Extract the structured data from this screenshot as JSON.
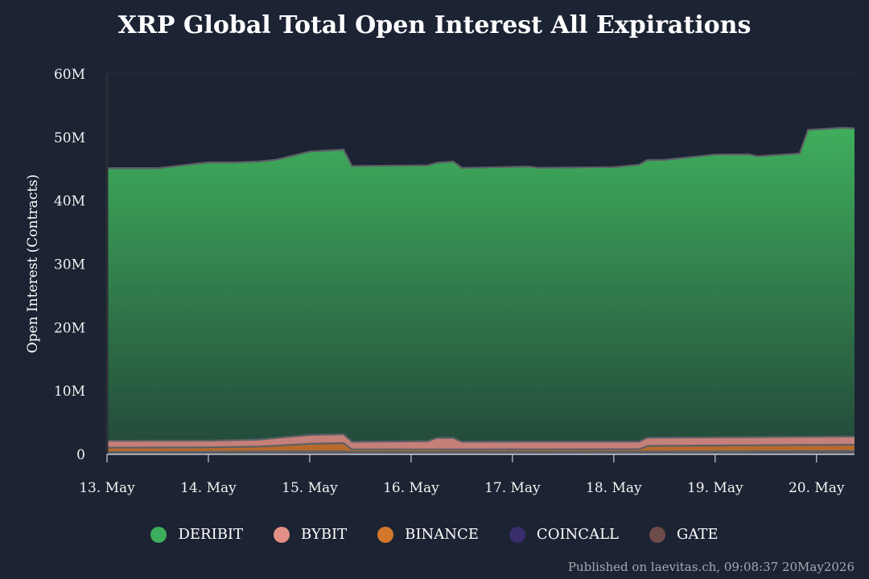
{
  "chart_data": {
    "type": "area",
    "title": "XRP Global Total Open Interest All Expirations",
    "ylabel": "Open Interest (Contracts)",
    "xlabel": "",
    "ylim": [
      0,
      60000000
    ],
    "yticks": [
      0,
      10000000,
      20000000,
      30000000,
      40000000,
      50000000,
      60000000
    ],
    "ytick_labels": [
      "0",
      "10M",
      "20M",
      "30M",
      "40M",
      "50M",
      "60M"
    ],
    "x_start": "2026-05-13 00:00",
    "x_end": "2026-05-20 09:00",
    "xticks": [
      "2026-05-13",
      "2026-05-14",
      "2026-05-15",
      "2026-05-16",
      "2026-05-17",
      "2026-05-18",
      "2026-05-19",
      "2026-05-20"
    ],
    "xtick_labels": [
      "13. May",
      "14. May",
      "15. May",
      "16. May",
      "17. May",
      "18. May",
      "19. May",
      "20. May"
    ],
    "stacked": true,
    "legend_position": "bottom-center",
    "grid": false,
    "series": [
      {
        "name": "GATE",
        "color": "#6e4c4a",
        "points": [
          [
            "2026-05-13 00:00",
            200000
          ],
          [
            "2026-05-15 08:00",
            300000
          ],
          [
            "2026-05-15 10:00",
            200000
          ],
          [
            "2026-05-20 09:00",
            220000
          ]
        ]
      },
      {
        "name": "COINCALL",
        "color": "#3a2d6e",
        "points": [
          [
            "2026-05-13 00:00",
            150000
          ],
          [
            "2026-05-18 00:00",
            200000
          ],
          [
            "2026-05-20 09:00",
            300000
          ]
        ]
      },
      {
        "name": "BINANCE",
        "color": "#d2772c",
        "points": [
          [
            "2026-05-13 00:00",
            700000
          ],
          [
            "2026-05-14 00:00",
            700000
          ],
          [
            "2026-05-14 12:00",
            800000
          ],
          [
            "2026-05-15 00:00",
            1200000
          ],
          [
            "2026-05-15 08:00",
            1300000
          ],
          [
            "2026-05-15 10:00",
            400000
          ],
          [
            "2026-05-16 00:00",
            400000
          ],
          [
            "2026-05-18 06:00",
            400000
          ],
          [
            "2026-05-18 08:00",
            900000
          ],
          [
            "2026-05-20 09:00",
            1000000
          ]
        ]
      },
      {
        "name": "BYBIT",
        "color": "#e29086",
        "points": [
          [
            "2026-05-13 00:00",
            1100000
          ],
          [
            "2026-05-14 00:00",
            1050000
          ],
          [
            "2026-05-14 12:00",
            1100000
          ],
          [
            "2026-05-15 00:00",
            1400000
          ],
          [
            "2026-05-15 08:00",
            1400000
          ],
          [
            "2026-05-15 10:00",
            1200000
          ],
          [
            "2026-05-16 04:00",
            1300000
          ],
          [
            "2026-05-16 06:00",
            1800000
          ],
          [
            "2026-05-16 10:00",
            1800000
          ],
          [
            "2026-05-16 12:00",
            1200000
          ],
          [
            "2026-05-18 06:00",
            1200000
          ],
          [
            "2026-05-18 08:00",
            1300000
          ],
          [
            "2026-05-20 09:00",
            1300000
          ]
        ]
      },
      {
        "name": "DERIBIT",
        "color": "#3dae5b",
        "points": [
          [
            "2026-05-13 00:00",
            43000000
          ],
          [
            "2026-05-13 12:00",
            43000000
          ],
          [
            "2026-05-14 00:00",
            43900000
          ],
          [
            "2026-05-14 06:00",
            43800000
          ],
          [
            "2026-05-14 16:00",
            43900000
          ],
          [
            "2026-05-15 00:00",
            44700000
          ],
          [
            "2026-05-15 08:00",
            44900000
          ],
          [
            "2026-05-15 10:00",
            43500000
          ],
          [
            "2026-05-16 04:00",
            43500000
          ],
          [
            "2026-05-16 06:00",
            43400000
          ],
          [
            "2026-05-16 10:00",
            43600000
          ],
          [
            "2026-05-16 12:00",
            43200000
          ],
          [
            "2026-05-17 04:00",
            43400000
          ],
          [
            "2026-05-17 06:00",
            43200000
          ],
          [
            "2026-05-18 00:00",
            43300000
          ],
          [
            "2026-05-18 08:00",
            43800000
          ],
          [
            "2026-05-18 12:00",
            43800000
          ],
          [
            "2026-05-19 00:00",
            44600000
          ],
          [
            "2026-05-19 08:00",
            44600000
          ],
          [
            "2026-05-19 10:00",
            44300000
          ],
          [
            "2026-05-19 20:00",
            44700000
          ],
          [
            "2026-05-19 22:00",
            48400000
          ],
          [
            "2026-05-20 06:00",
            48700000
          ],
          [
            "2026-05-20 09:00",
            48600000
          ]
        ]
      }
    ]
  },
  "legend": [
    {
      "name": "DERIBIT",
      "color": "#3dae5b"
    },
    {
      "name": "BYBIT",
      "color": "#e29086"
    },
    {
      "name": "BINANCE",
      "color": "#d2772c"
    },
    {
      "name": "COINCALL",
      "color": "#3a2d6e"
    },
    {
      "name": "GATE",
      "color": "#6e4c4a"
    }
  ],
  "credit": "Published on laevitas.ch, 09:08:37 20May2026"
}
